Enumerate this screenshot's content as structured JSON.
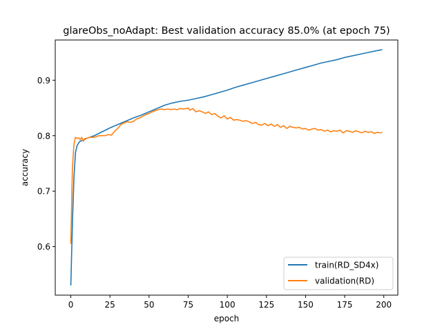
{
  "chart_data": {
    "type": "line",
    "title": "glareObs_noAdapt: Best validation accuracy 85.0% (at epoch 75)",
    "xlabel": "epoch",
    "ylabel": "accuracy",
    "xlim": [
      -9.95,
      208.95
    ],
    "ylim": [
      0.5125,
      0.9725
    ],
    "xticks": [
      0,
      25,
      50,
      75,
      100,
      125,
      150,
      175,
      200
    ],
    "xtick_labels": [
      "0",
      "25",
      "50",
      "75",
      "100",
      "125",
      "150",
      "175",
      "200"
    ],
    "yticks": [
      0.6,
      0.7,
      0.8,
      0.9
    ],
    "ytick_labels": [
      "0.6",
      "0.7",
      "0.8",
      "0.9"
    ],
    "grid": false,
    "legend_position": "lower-right",
    "series": [
      {
        "name": "train(RD_SD4x)",
        "color": "#1f77b4",
        "x": [
          0,
          1,
          2,
          3,
          4,
          5,
          6,
          8,
          10,
          15,
          20,
          25,
          30,
          35,
          40,
          45,
          50,
          55,
          60,
          65,
          70,
          75,
          80,
          85,
          90,
          95,
          100,
          105,
          110,
          115,
          120,
          125,
          130,
          135,
          140,
          145,
          150,
          155,
          160,
          165,
          170,
          175,
          180,
          185,
          190,
          195,
          199
        ],
        "values": [
          0.53,
          0.64,
          0.725,
          0.77,
          0.782,
          0.787,
          0.79,
          0.792,
          0.795,
          0.8,
          0.807,
          0.814,
          0.82,
          0.826,
          0.832,
          0.837,
          0.843,
          0.849,
          0.855,
          0.859,
          0.862,
          0.864,
          0.867,
          0.87,
          0.874,
          0.878,
          0.882,
          0.887,
          0.891,
          0.895,
          0.899,
          0.903,
          0.907,
          0.911,
          0.915,
          0.919,
          0.923,
          0.927,
          0.931,
          0.934,
          0.937,
          0.941,
          0.944,
          0.947,
          0.95,
          0.953,
          0.955
        ]
      },
      {
        "name": "validation(RD)",
        "color": "#ff7f0e",
        "x": [
          0,
          1,
          2,
          3,
          4,
          5,
          6,
          7,
          8,
          9,
          10,
          12,
          14,
          16,
          18,
          20,
          22,
          24,
          26,
          28,
          30,
          32,
          34,
          36,
          38,
          40,
          42,
          44,
          46,
          48,
          50,
          52,
          54,
          56,
          58,
          60,
          62,
          64,
          66,
          68,
          70,
          72,
          74,
          75,
          76,
          78,
          80,
          82,
          84,
          86,
          88,
          90,
          92,
          94,
          96,
          98,
          100,
          102,
          104,
          106,
          108,
          110,
          112,
          114,
          116,
          118,
          120,
          122,
          124,
          126,
          128,
          130,
          132,
          134,
          136,
          138,
          140,
          142,
          144,
          146,
          148,
          150,
          152,
          154,
          156,
          158,
          160,
          162,
          164,
          166,
          168,
          170,
          172,
          174,
          176,
          178,
          180,
          182,
          184,
          186,
          188,
          190,
          192,
          194,
          196,
          198,
          199
        ],
        "values": [
          0.605,
          0.74,
          0.785,
          0.797,
          0.795,
          0.796,
          0.793,
          0.797,
          0.79,
          0.795,
          0.795,
          0.797,
          0.797,
          0.798,
          0.8,
          0.8,
          0.8,
          0.802,
          0.801,
          0.808,
          0.813,
          0.82,
          0.823,
          0.825,
          0.824,
          0.826,
          0.83,
          0.832,
          0.835,
          0.838,
          0.84,
          0.843,
          0.845,
          0.847,
          0.848,
          0.847,
          0.848,
          0.847,
          0.848,
          0.847,
          0.849,
          0.848,
          0.849,
          0.85,
          0.846,
          0.849,
          0.843,
          0.845,
          0.843,
          0.84,
          0.843,
          0.838,
          0.84,
          0.835,
          0.832,
          0.836,
          0.83,
          0.833,
          0.828,
          0.829,
          0.828,
          0.826,
          0.827,
          0.825,
          0.822,
          0.824,
          0.82,
          0.819,
          0.822,
          0.818,
          0.821,
          0.817,
          0.82,
          0.815,
          0.818,
          0.813,
          0.817,
          0.815,
          0.814,
          0.815,
          0.812,
          0.813,
          0.81,
          0.812,
          0.813,
          0.81,
          0.811,
          0.808,
          0.81,
          0.807,
          0.809,
          0.808,
          0.81,
          0.805,
          0.809,
          0.808,
          0.806,
          0.809,
          0.807,
          0.805,
          0.808,
          0.806,
          0.807,
          0.804,
          0.806,
          0.805,
          0.806
        ]
      }
    ]
  }
}
